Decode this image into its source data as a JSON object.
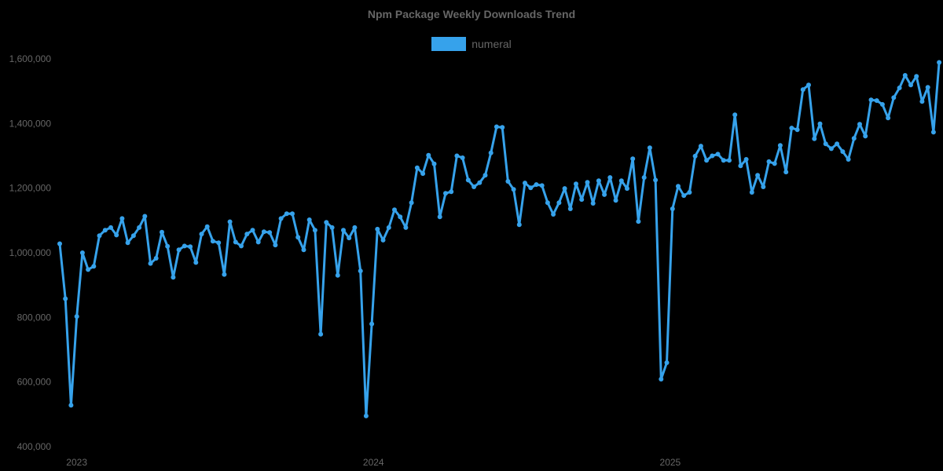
{
  "title": "Npm Package Weekly Downloads Trend",
  "legend": [
    {
      "label": "numeral",
      "color": "#36A2EB"
    }
  ],
  "colors": {
    "background": "#000000",
    "text": "#666666",
    "series": "#36A2EB"
  },
  "chart_data": {
    "type": "line",
    "title": "Npm Package Weekly Downloads Trend",
    "xlabel": "",
    "ylabel": "",
    "ylim": [
      400000,
      1600000
    ],
    "grid": false,
    "legend_position": "top",
    "y_ticks": [
      "400,000",
      "600,000",
      "800,000",
      "1,000,000",
      "1,200,000",
      "1,400,000",
      "1,600,000"
    ],
    "x_ticks": [
      {
        "label": "2023",
        "index": 3
      },
      {
        "label": "2024",
        "index": 55.3
      },
      {
        "label": "2025",
        "index": 107.6
      }
    ],
    "series": [
      {
        "name": "numeral",
        "color": "#36A2EB",
        "values": [
          1028000,
          858000,
          528000,
          803000,
          1000000,
          948000,
          958000,
          1053000,
          1070000,
          1078000,
          1055000,
          1106000,
          1031000,
          1053000,
          1078000,
          1113000,
          967000,
          983000,
          1064000,
          1020000,
          924000,
          1009000,
          1021000,
          1019000,
          970000,
          1058000,
          1081000,
          1036000,
          1031000,
          933000,
          1096000,
          1033000,
          1021000,
          1058000,
          1070000,
          1033000,
          1065000,
          1063000,
          1024000,
          1106000,
          1121000,
          1121000,
          1048000,
          1009000,
          1102000,
          1070000,
          748000,
          1094000,
          1078000,
          930000,
          1070000,
          1046000,
          1078000,
          944000,
          495000,
          780000,
          1073000,
          1039000,
          1078000,
          1133000,
          1111000,
          1078000,
          1155000,
          1263000,
          1245000,
          1302000,
          1275000,
          1111000,
          1184000,
          1189000,
          1300000,
          1294000,
          1225000,
          1204000,
          1217000,
          1240000,
          1309000,
          1390000,
          1388000,
          1221000,
          1196000,
          1087000,
          1216000,
          1201000,
          1211000,
          1208000,
          1155000,
          1119000,
          1155000,
          1199000,
          1136000,
          1213000,
          1165000,
          1218000,
          1153000,
          1223000,
          1180000,
          1233000,
          1162000,
          1223000,
          1199000,
          1291000,
          1097000,
          1233000,
          1325000,
          1225000,
          609000,
          660000,
          1136000,
          1206000,
          1177000,
          1187000,
          1299000,
          1330000,
          1286000,
          1300000,
          1305000,
          1286000,
          1286000,
          1427000,
          1269000,
          1289000,
          1187000,
          1240000,
          1204000,
          1282000,
          1276000,
          1332000,
          1250000,
          1386000,
          1381000,
          1505000,
          1519000,
          1353000,
          1399000,
          1337000,
          1322000,
          1337000,
          1313000,
          1289000,
          1354000,
          1398000,
          1361000,
          1473000,
          1471000,
          1459000,
          1417000,
          1480000,
          1510000,
          1549000,
          1519000,
          1546000,
          1468000,
          1512000,
          1373000,
          1589000
        ]
      }
    ]
  }
}
